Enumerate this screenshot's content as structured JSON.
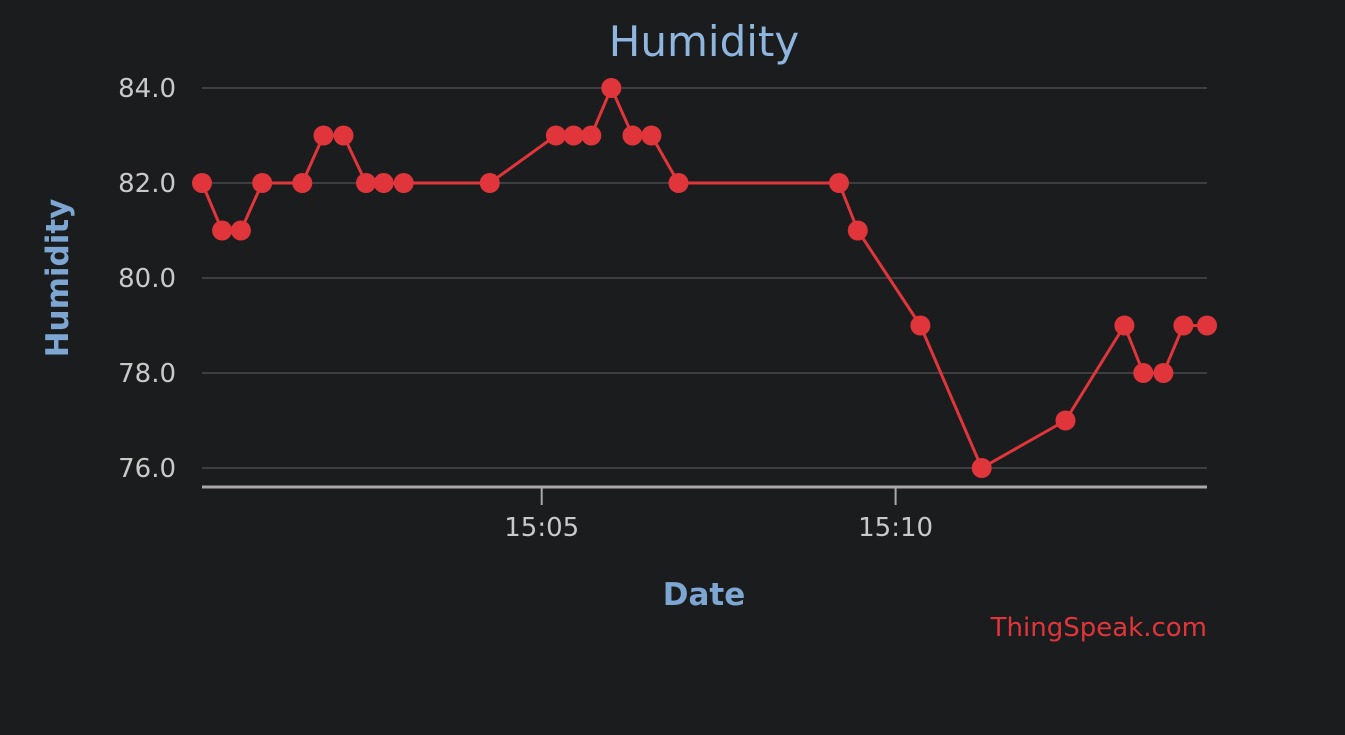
{
  "chart_data": {
    "type": "line",
    "title": "Humidity",
    "xlabel": "Date",
    "ylabel": "Humidity",
    "credit": "ThingSpeak.com",
    "ylim": [
      75.6,
      84
    ],
    "xlim": [
      "15:00:12",
      "15:14:24"
    ],
    "y_ticks": [
      {
        "value": 84,
        "label": "84.0"
      },
      {
        "value": 82,
        "label": "82.0"
      },
      {
        "value": 80,
        "label": "80.0"
      },
      {
        "value": 78,
        "label": "78.0"
      },
      {
        "value": 76,
        "label": "76.0"
      }
    ],
    "x_ticks": [
      {
        "value": "15:05:00",
        "label": "15:05"
      },
      {
        "value": "15:10:00",
        "label": "15:10"
      }
    ],
    "grid": true,
    "legend": "none",
    "series_color": "#e0363b",
    "series": [
      {
        "x": [
          "15:00:12",
          "15:00:29",
          "15:00:45",
          "15:01:03",
          "15:01:37",
          "15:01:55",
          "15:02:12",
          "15:02:31",
          "15:02:46",
          "15:03:03",
          "15:04:16",
          "15:05:12",
          "15:05:27",
          "15:05:42",
          "15:05:59",
          "15:06:17",
          "15:06:33",
          "15:06:56",
          "15:09:12",
          "15:09:28",
          "15:10:21",
          "15:11:13",
          "15:12:24",
          "15:13:14",
          "15:13:30",
          "15:13:47",
          "15:14:04",
          "15:14:24"
        ],
        "y": [
          82,
          81,
          81,
          82,
          82,
          83,
          83,
          82,
          82,
          82,
          82,
          83,
          83,
          83,
          84,
          83,
          83,
          82,
          82,
          81,
          79,
          76,
          77,
          79,
          78,
          78,
          79,
          79
        ]
      }
    ]
  }
}
